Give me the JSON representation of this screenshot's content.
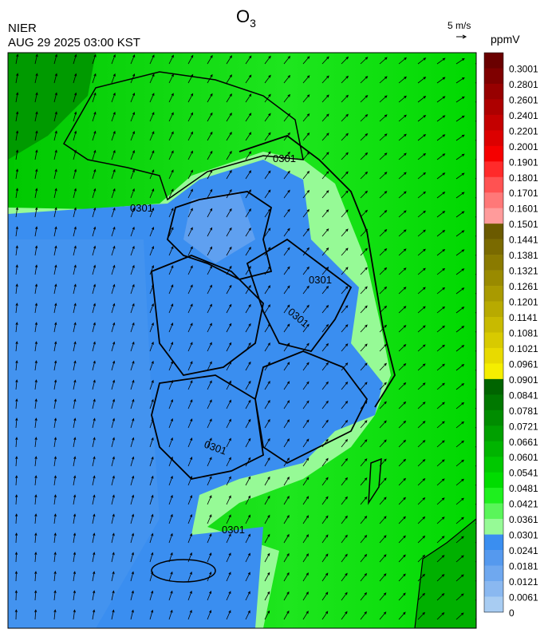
{
  "header": {
    "title": "O",
    "title_sub": "3",
    "agency": "NIER",
    "datetime": "AUG 29 2025 03:00 KST",
    "wind_scale": "5 m/s"
  },
  "colorbar": {
    "unit": "ppmV",
    "labels": [
      "0.3001",
      "0.2801",
      "0.2601",
      "0.2401",
      "0.2201",
      "0.2001",
      "0.1901",
      "0.1801",
      "0.1701",
      "0.1601",
      "0.1501",
      "0.1441",
      "0.1381",
      "0.1321",
      "0.1261",
      "0.1201",
      "0.1141",
      "0.1081",
      "0.1021",
      "0.0961",
      "0.0901",
      "0.0841",
      "0.0781",
      "0.0721",
      "0.0661",
      "0.0601",
      "0.0541",
      "0.0481",
      "0.0421",
      "0.0361",
      "0.0301",
      "0.0241",
      "0.0181",
      "0.0121",
      "0.0061",
      "0"
    ],
    "colors": [
      "#6a0000",
      "#7f0000",
      "#970000",
      "#ad0000",
      "#c40000",
      "#dc0000",
      "#f50000",
      "#ff2a2a",
      "#ff5252",
      "#ff7878",
      "#ff9b9b",
      "#6b5a00",
      "#7a6a00",
      "#8a7a00",
      "#998a00",
      "#a99a00",
      "#b8aa00",
      "#c8ba00",
      "#d8ca00",
      "#e8da00",
      "#f5ee00",
      "#006400",
      "#007800",
      "#008c00",
      "#00a000",
      "#00b400",
      "#00c800",
      "#00dc00",
      "#1ef01e",
      "#5af55a",
      "#96fa96",
      "#3a8ef0",
      "#5599ee",
      "#6fa8ef",
      "#8ab8f0",
      "#a8ccf2"
    ]
  },
  "contour_labels": [
    "0301",
    "0301",
    "0301",
    "0301",
    "0301",
    "0301"
  ]
}
